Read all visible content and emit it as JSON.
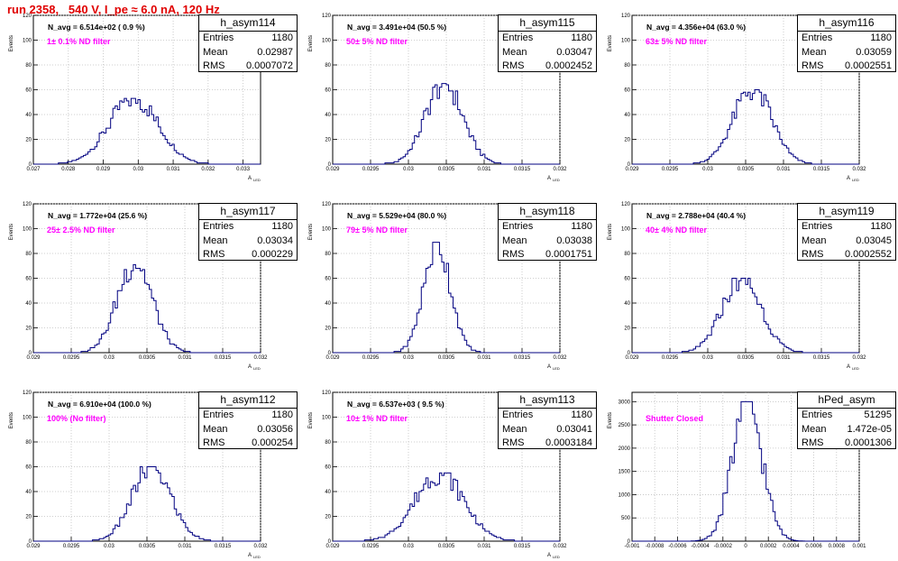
{
  "title": "run 2358,   540 V, I_pe ≈ 6.0 nA, 120 Hz",
  "colors": {
    "title": "#e00000",
    "filter_text": "#ff00ff",
    "histogram": "#000080",
    "grid": "#c0c0c0"
  },
  "stat_labels": {
    "entries": "Entries",
    "mean": "Mean",
    "rms": "RMS"
  },
  "panels": [
    {
      "name": "h_asym114",
      "navg": "N_avg = 6.514e+02 ( 0.9 %)",
      "filter": "1± 0.1% ND filter",
      "entries": "1180",
      "mean": "0.02987",
      "rms": "0.0007072",
      "xlabel": "A",
      "x_ticks": [
        "0.027",
        "0.028",
        "0.029",
        "0.03",
        "0.031",
        "0.032",
        "0.033"
      ],
      "y_ticks": [
        "0",
        "20",
        "40",
        "60",
        "80",
        "100",
        "120"
      ],
      "chart_data": {
        "type": "histogram",
        "xlim": [
          0.027,
          0.0335
        ],
        "ylim": [
          0,
          120
        ],
        "mean": 0.02987,
        "rms": 0.0007072,
        "peak": 53,
        "grid": true
      }
    },
    {
      "name": "h_asym115",
      "navg": "N_avg = 3.491e+04 (50.5 %)",
      "filter": "50± 5% ND filter",
      "entries": "1180",
      "mean": "0.03047",
      "rms": "0.0002452",
      "xlabel": "A",
      "x_ticks": [
        "0.029",
        "0.0295",
        "0.03",
        "0.0305",
        "0.031",
        "0.0315",
        "0.032"
      ],
      "y_ticks": [
        "0",
        "20",
        "40",
        "60",
        "80",
        "100",
        "120"
      ],
      "chart_data": {
        "type": "histogram",
        "xlim": [
          0.029,
          0.032
        ],
        "ylim": [
          0,
          120
        ],
        "mean": 0.03047,
        "rms": 0.0002452,
        "peak": 65,
        "grid": true
      }
    },
    {
      "name": "h_asym116",
      "navg": "N_avg = 4.356e+04 (63.0 %)",
      "filter": "63± 5% ND filter",
      "entries": "1180",
      "mean": "0.03059",
      "rms": "0.0002551",
      "xlabel": "A",
      "x_ticks": [
        "0.029",
        "0.0295",
        "0.03",
        "0.0305",
        "0.031",
        "0.0315",
        "0.032"
      ],
      "y_ticks": [
        "0",
        "20",
        "40",
        "60",
        "80",
        "100",
        "120"
      ],
      "chart_data": {
        "type": "histogram",
        "xlim": [
          0.029,
          0.032
        ],
        "ylim": [
          0,
          120
        ],
        "mean": 0.03059,
        "rms": 0.0002551,
        "peak": 60,
        "grid": true
      }
    },
    {
      "name": "h_asym117",
      "navg": "N_avg = 1.772e+04 (25.6 %)",
      "filter": "25± 2.5% ND filter",
      "entries": "1180",
      "mean": "0.03034",
      "rms": "0.000229",
      "xlabel": "A",
      "x_ticks": [
        "0.029",
        "0.0295",
        "0.03",
        "0.0305",
        "0.031",
        "0.0315",
        "0.032"
      ],
      "y_ticks": [
        "0",
        "20",
        "40",
        "60",
        "80",
        "100",
        "120"
      ],
      "chart_data": {
        "type": "histogram",
        "xlim": [
          0.029,
          0.032
        ],
        "ylim": [
          0,
          120
        ],
        "mean": 0.03034,
        "rms": 0.000229,
        "peak": 73,
        "grid": true
      }
    },
    {
      "name": "h_asym118",
      "navg": "N_avg = 5.529e+04 (80.0 %)",
      "filter": "79± 5% ND filter",
      "entries": "1180",
      "mean": "0.03038",
      "rms": "0.0001751",
      "xlabel": "A",
      "x_ticks": [
        "0.029",
        "0.0295",
        "0.03",
        "0.0305",
        "0.031",
        "0.0315",
        "0.032"
      ],
      "y_ticks": [
        "0",
        "20",
        "40",
        "60",
        "80",
        "100",
        "120"
      ],
      "chart_data": {
        "type": "histogram",
        "xlim": [
          0.029,
          0.032
        ],
        "ylim": [
          0,
          120
        ],
        "mean": 0.03038,
        "rms": 0.0001751,
        "peak": 89,
        "grid": true
      }
    },
    {
      "name": "h_asym119",
      "navg": "N_avg = 2.788e+04 (40.4 %)",
      "filter": "40± 4% ND filter",
      "entries": "1180",
      "mean": "0.03045",
      "rms": "0.0002552",
      "xlabel": "A",
      "x_ticks": [
        "0.029",
        "0.0295",
        "0.03",
        "0.0305",
        "0.031",
        "0.0315",
        "0.032"
      ],
      "y_ticks": [
        "0",
        "20",
        "40",
        "60",
        "80",
        "100",
        "120"
      ],
      "chart_data": {
        "type": "histogram",
        "xlim": [
          0.029,
          0.032
        ],
        "ylim": [
          0,
          120
        ],
        "mean": 0.03045,
        "rms": 0.0002552,
        "peak": 60,
        "grid": true
      }
    },
    {
      "name": "h_asym112",
      "navg": "N_avg = 6.910e+04 (100.0 %)",
      "filter": "100% (No filter)",
      "entries": "1180",
      "mean": "0.03056",
      "rms": "0.000254",
      "xlabel": "A",
      "x_ticks": [
        "0.029",
        "0.0295",
        "0.03",
        "0.0305",
        "0.031",
        "0.0315",
        "0.032"
      ],
      "y_ticks": [
        "0",
        "20",
        "40",
        "60",
        "80",
        "100",
        "120"
      ],
      "chart_data": {
        "type": "histogram",
        "xlim": [
          0.029,
          0.032
        ],
        "ylim": [
          0,
          120
        ],
        "mean": 0.03056,
        "rms": 0.000254,
        "peak": 60,
        "grid": true
      }
    },
    {
      "name": "h_asym113",
      "navg": "N_avg = 6.537e+03 ( 9.5 %)",
      "filter": "10± 1% ND filter",
      "entries": "1180",
      "mean": "0.03041",
      "rms": "0.0003184",
      "xlabel": "A",
      "x_ticks": [
        "0.029",
        "0.0295",
        "0.03",
        "0.0305",
        "0.031",
        "0.0315",
        "0.032"
      ],
      "y_ticks": [
        "0",
        "20",
        "40",
        "60",
        "80",
        "100",
        "120"
      ],
      "chart_data": {
        "type": "histogram",
        "xlim": [
          0.029,
          0.032
        ],
        "ylim": [
          0,
          120
        ],
        "mean": 0.03041,
        "rms": 0.0003184,
        "peak": 55,
        "grid": true
      }
    },
    {
      "name": "hPed_asym",
      "navg": "",
      "filter": "Shutter Closed",
      "entries": "51295",
      "mean": "1.472e-05",
      "rms": "0.0001306",
      "xlabel": "",
      "x_ticks": [
        "-0.001",
        "-0.0008",
        "-0.0006",
        "-0.0004",
        "-0.0002",
        "0",
        "0.0002",
        "0.0004",
        "0.0006",
        "0.0008",
        "0.001"
      ],
      "y_ticks": [
        "0",
        "500",
        "1000",
        "1500",
        "2000",
        "2500",
        "3000"
      ],
      "chart_data": {
        "type": "histogram",
        "xlim": [
          -0.001,
          0.001
        ],
        "ylim": [
          0,
          3200
        ],
        "mean": 1.472e-05,
        "rms": 0.0001306,
        "peak": 3000,
        "grid": true
      }
    }
  ],
  "ylabel": "Events"
}
